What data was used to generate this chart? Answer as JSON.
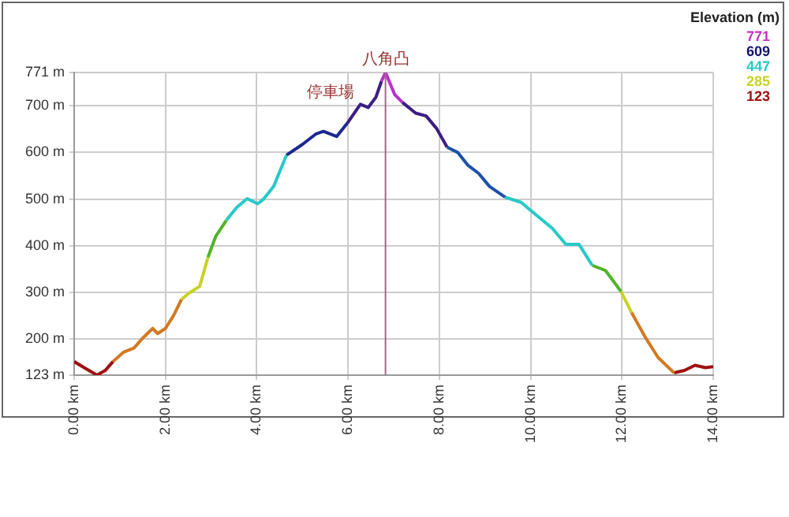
{
  "chart_data": {
    "type": "line",
    "clabel": "Elevation (m)",
    "series": [
      {
        "color": "#a01010",
        "x": [
          0,
          0.22,
          0.5,
          0.68,
          0.85
        ],
        "values": [
          152,
          139,
          123,
          133,
          152
        ]
      },
      {
        "color": "#d27a22",
        "x": [
          0.85,
          1.08,
          1.31,
          1.49,
          1.72,
          1.83,
          2.0,
          2.18,
          2.35
        ],
        "values": [
          152,
          172,
          181,
          201,
          223,
          212,
          223,
          251,
          285
        ]
      },
      {
        "color": "#c8d228",
        "x": [
          2.35,
          2.52,
          2.75,
          2.93
        ],
        "values": [
          285,
          299,
          313,
          375
        ]
      },
      {
        "color": "#50b428",
        "x": [
          2.93,
          3.1,
          3.33
        ],
        "values": [
          375,
          420,
          454
        ]
      },
      {
        "color": "#28c8c8",
        "x": [
          3.33,
          3.56,
          3.79,
          4.02,
          4.14,
          4.37,
          4.65
        ],
        "values": [
          454,
          482,
          501,
          490,
          499,
          527,
          594
        ]
      },
      {
        "color": "#1a2a8c",
        "x": [
          4.65,
          5.0,
          5.29,
          5.46,
          5.75,
          5.98
        ],
        "values": [
          594,
          617,
          639,
          645,
          634,
          662
        ]
      },
      {
        "color": "#3c1e82",
        "x": [
          5.98,
          6.27,
          6.44,
          6.61,
          6.73
        ],
        "values": [
          662,
          703,
          696,
          718,
          752
        ]
      },
      {
        "color": "#b432c8",
        "x": [
          6.73,
          6.82,
          7.02,
          7.19
        ],
        "values": [
          752,
          771,
          724,
          707
        ]
      },
      {
        "color": "#3c1e82",
        "x": [
          7.19,
          7.48,
          7.71,
          7.94,
          8.17
        ],
        "values": [
          707,
          684,
          678,
          651,
          611
        ]
      },
      {
        "color": "#1e50a8",
        "x": [
          8.17,
          8.4,
          8.63,
          8.86,
          9.1,
          9.44
        ],
        "values": [
          611,
          600,
          572,
          555,
          527,
          504
        ]
      },
      {
        "color": "#28c8c8",
        "x": [
          9.44,
          9.79,
          10.13,
          10.48,
          10.77,
          11.06,
          11.35
        ],
        "values": [
          504,
          493,
          465,
          437,
          403,
          403,
          358
        ]
      },
      {
        "color": "#50b428",
        "x": [
          11.35,
          11.64,
          11.98
        ],
        "values": [
          358,
          347,
          302
        ]
      },
      {
        "color": "#c8d228",
        "x": [
          11.98,
          12.21
        ],
        "values": [
          302,
          257
        ]
      },
      {
        "color": "#d27a22",
        "x": [
          12.21,
          12.5,
          12.79,
          13.14
        ],
        "values": [
          257,
          206,
          161,
          128
        ]
      },
      {
        "color": "#a01010",
        "x": [
          13.14,
          13.37,
          13.6,
          13.83,
          14.0
        ],
        "values": [
          128,
          133,
          144,
          139,
          141
        ]
      }
    ],
    "xlim": [
      0,
      14.0
    ],
    "xticks": [
      {
        "value": 0,
        "label": "0.00 km"
      },
      {
        "value": 2,
        "label": "2.00 km"
      },
      {
        "value": 4,
        "label": "4.00 km"
      },
      {
        "value": 6,
        "label": "6.00 km"
      },
      {
        "value": 8,
        "label": "8.00 km"
      },
      {
        "value": 10,
        "label": "10.00 km"
      },
      {
        "value": 12,
        "label": "12.00 km"
      },
      {
        "value": 14,
        "label": "14.00 km"
      }
    ],
    "ylim": [
      123,
      771
    ],
    "yticks": [
      {
        "value": 123,
        "label": "123 m"
      },
      {
        "value": 200,
        "label": "200 m"
      },
      {
        "value": 300,
        "label": "300 m"
      },
      {
        "value": 400,
        "label": "400 m"
      },
      {
        "value": 500,
        "label": "500 m"
      },
      {
        "value": 600,
        "label": "600 m"
      },
      {
        "value": 700,
        "label": "700 m"
      },
      {
        "value": 771,
        "label": "771 m"
      }
    ],
    "grid": true,
    "legend": false,
    "marker": "none",
    "ref_lines": [
      {
        "axis": "x",
        "value": 6.82,
        "label": "八角凸",
        "color": "#aa6688"
      }
    ],
    "annotations": [
      {
        "text": "停車場",
        "x": 6.27,
        "y": 703
      },
      "771",
      "609",
      "447",
      "285",
      "123"
    ]
  }
}
